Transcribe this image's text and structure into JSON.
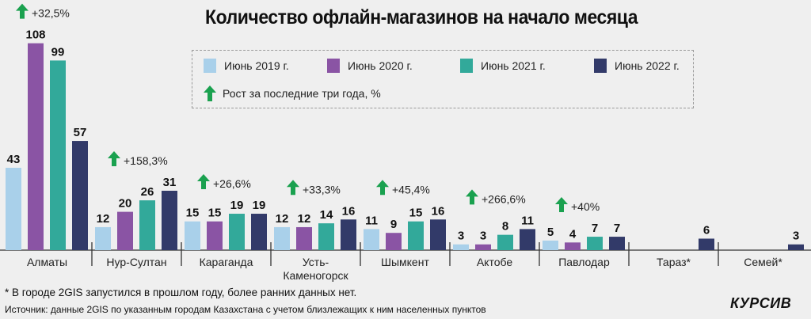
{
  "chart_data": {
    "type": "bar",
    "title": "Количество офлайн-магазинов на начало месяца",
    "xlabel": "",
    "ylabel": "",
    "ylim": [
      0,
      110
    ],
    "grid": false,
    "legend_placement": "top-center",
    "categories": [
      "Алматы",
      "Нур-Султан",
      "Караганда",
      "Усть-Каменогорск",
      "Шымкент",
      "Актобе",
      "Павлодар",
      "Тараз*",
      "Семей*"
    ],
    "category_lines": [
      [
        "Алматы"
      ],
      [
        "Нур-Султан"
      ],
      [
        "Караганда"
      ],
      [
        "Усть-",
        "Каменогорск"
      ],
      [
        "Шымкент"
      ],
      [
        "Актобе"
      ],
      [
        "Павлодар"
      ],
      [
        "Тараз*"
      ],
      [
        "Семей*"
      ]
    ],
    "series": [
      {
        "name": "Июнь 2019 г.",
        "color": "#a9d0ea",
        "values": [
          43,
          12,
          15,
          12,
          11,
          3,
          5,
          null,
          null
        ]
      },
      {
        "name": "Июнь 2020 г.",
        "color": "#8a54a4",
        "values": [
          108,
          20,
          15,
          12,
          9,
          3,
          4,
          null,
          null
        ]
      },
      {
        "name": "Июнь 2021 г.",
        "color": "#32a99a",
        "values": [
          99,
          26,
          19,
          14,
          15,
          8,
          7,
          null,
          null
        ]
      },
      {
        "name": "Июнь 2022 г.",
        "color": "#323a69",
        "values": [
          57,
          31,
          19,
          16,
          16,
          11,
          7,
          6,
          3
        ]
      }
    ],
    "growth": {
      "label": "Рост за последние три года, %",
      "color": "#1aa14f",
      "values": [
        "+32,5%",
        "+158,3%",
        "+26,6%",
        "+33,3%",
        "+45,4%",
        "+266,6%",
        "+40%",
        null,
        null
      ]
    }
  },
  "footnote": "* В городе 2GIS запустился в прошлом году, более ранних данных нет.",
  "source": "Источник: данные 2GIS по указанным городам Казахстана с учетом близлежащих к ним населенных пунктов",
  "logo": "КУРСИВ"
}
